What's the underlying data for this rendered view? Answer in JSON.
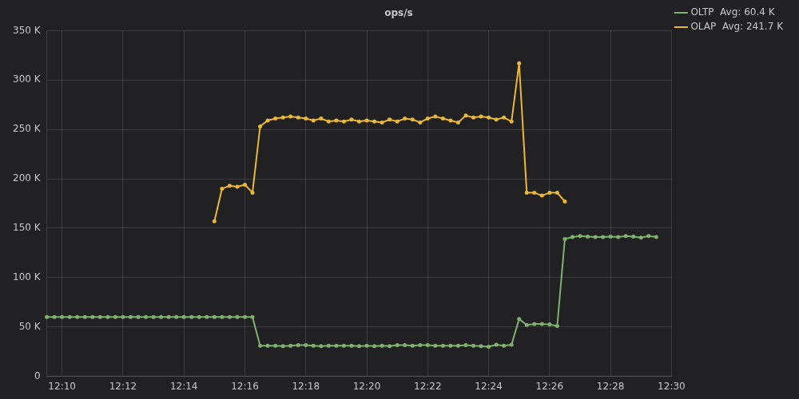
{
  "chart_data": {
    "type": "line",
    "title": "ops/s",
    "categories": [
      null,
      null,
      "12:10",
      null,
      null,
      null,
      null,
      null,
      null,
      null,
      "12:12",
      null,
      null,
      null,
      null,
      null,
      null,
      null,
      "12:14",
      null,
      null,
      null,
      null,
      null,
      null,
      null,
      "12:16",
      null,
      null,
      null,
      null,
      null,
      null,
      null,
      "12:18",
      null,
      null,
      null,
      null,
      null,
      null,
      null,
      "12:20",
      null,
      null,
      null,
      null,
      null,
      null,
      null,
      "12:22",
      null,
      null,
      null,
      null,
      null,
      null,
      null,
      "12:24",
      null,
      null,
      null,
      null,
      null,
      null,
      null,
      "12:26",
      null,
      null,
      null,
      null,
      null,
      null,
      null,
      "12:28",
      null,
      null,
      null,
      null,
      null,
      null,
      null,
      "12:30"
    ],
    "series": [
      {
        "name": "OLTP  Avg: 60.4 K",
        "color": "#7eb26d",
        "marker": "circle",
        "line_style": "solid",
        "values": [
          60000,
          60000,
          60000,
          60000,
          60000,
          60000,
          60000,
          60000,
          60000,
          60000,
          60000,
          60000,
          60000,
          60000,
          60000,
          60000,
          60000,
          60000,
          60000,
          60000,
          60000,
          60000,
          60000,
          60000,
          60000,
          60000,
          60000,
          60000,
          31000,
          31000,
          31000,
          30500,
          31000,
          31500,
          31500,
          31000,
          30500,
          31000,
          31000,
          31000,
          31000,
          30500,
          31000,
          30500,
          31000,
          30500,
          31500,
          31500,
          31000,
          31500,
          31500,
          31000,
          31000,
          31000,
          31000,
          31500,
          31000,
          30500,
          30000,
          32000,
          31000,
          32000,
          58000,
          52000,
          53000,
          53000,
          52500,
          51000,
          139000,
          141000,
          142000,
          141500,
          141000,
          141000,
          141500,
          141000,
          142000,
          141500,
          140500,
          142000,
          141000,
          null,
          null
        ]
      },
      {
        "name": "OLAP  Avg: 241.7 K",
        "color": "#eab839",
        "marker": "circle",
        "line_style": "solid",
        "values": [
          null,
          null,
          null,
          null,
          null,
          null,
          null,
          null,
          null,
          null,
          null,
          null,
          null,
          null,
          null,
          null,
          null,
          null,
          null,
          null,
          null,
          null,
          157000,
          190000,
          193000,
          192000,
          194000,
          186000,
          253000,
          259000,
          261000,
          262000,
          263000,
          262000,
          261000,
          259000,
          261000,
          258000,
          259000,
          258000,
          260000,
          258000,
          259000,
          258000,
          257000,
          260000,
          258000,
          261000,
          260000,
          257000,
          261000,
          263000,
          261000,
          259000,
          257000,
          264000,
          262000,
          263000,
          262000,
          260000,
          262000,
          258000,
          317000,
          186000,
          186000,
          183000,
          186000,
          186000,
          177000,
          null,
          null,
          null,
          null,
          null,
          null,
          null,
          null,
          null,
          null,
          null,
          null,
          null,
          null
        ]
      }
    ],
    "ylim": [
      0,
      350000
    ],
    "yticks": [
      {
        "value": 0,
        "label": "0"
      },
      {
        "value": 50000,
        "label": "50 K"
      },
      {
        "value": 100000,
        "label": "100 K"
      },
      {
        "value": 150000,
        "label": "150 K"
      },
      {
        "value": 200000,
        "label": "200 K"
      },
      {
        "value": 250000,
        "label": "250 K"
      },
      {
        "value": 300000,
        "label": "300 K"
      },
      {
        "value": 350000,
        "label": "350 K"
      }
    ],
    "grid": true,
    "legend": "top-right"
  }
}
